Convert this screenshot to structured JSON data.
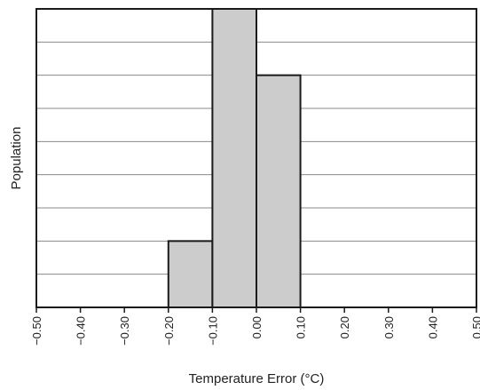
{
  "chart_data": {
    "type": "bar",
    "title": "",
    "xlabel": "Temperature Error (°C)",
    "ylabel": "Population",
    "x_ticks": [
      "−0.50",
      "−0.40",
      "−0.30",
      "−0.20",
      "−0.10",
      "0.00",
      "0.10",
      "0.20",
      "0.30",
      "0.40",
      "0.50"
    ],
    "xlim": [
      -0.5,
      0.5
    ],
    "ylim": [
      0,
      9
    ],
    "grid": true,
    "y_tick_labels_shown": false,
    "bins": [
      {
        "x0": -0.2,
        "x1": -0.1,
        "value": 2
      },
      {
        "x0": -0.1,
        "x1": 0.0,
        "value": 9
      },
      {
        "x0": 0.0,
        "x1": 0.1,
        "value": 7
      }
    ],
    "colors": {
      "bar_fill": "#cccccc",
      "bar_stroke": "#1a1a1a",
      "grid": "#8a8a8a",
      "frame": "#1a1a1a"
    }
  }
}
